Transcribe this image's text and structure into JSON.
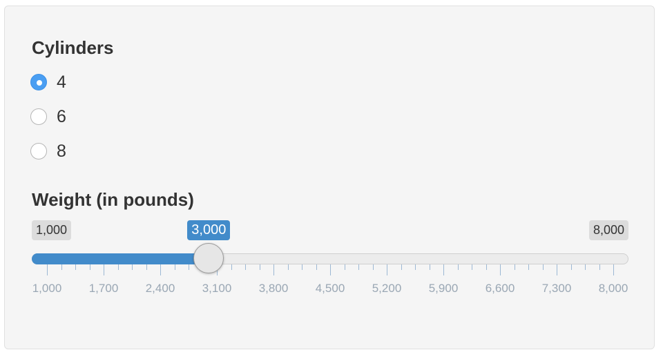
{
  "cylinders": {
    "label": "Cylinders",
    "options": [
      "4",
      "6",
      "8"
    ],
    "selected": "4"
  },
  "weight": {
    "label": "Weight (in pounds)",
    "min": 1000,
    "max": 8000,
    "value": 3000,
    "min_label": "1,000",
    "max_label": "8,000",
    "value_label": "3,000",
    "tick_labels": [
      "1,000",
      "1,700",
      "2,400",
      "3,100",
      "3,800",
      "4,500",
      "5,200",
      "5,900",
      "6,600",
      "7,300",
      "8,000"
    ],
    "minor_ticks_per_interval": 3
  },
  "colors": {
    "accent": "#428bca",
    "radio_checked": "#4a9ef2"
  }
}
